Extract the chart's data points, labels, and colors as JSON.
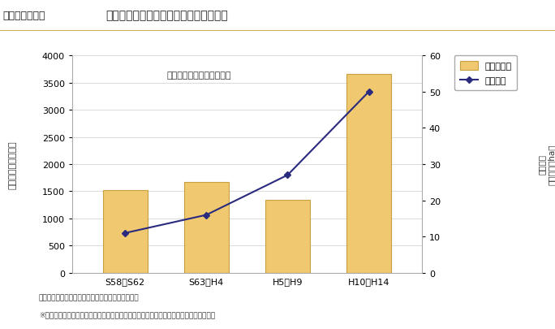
{
  "categories": [
    "S58～S62",
    "S63～H4",
    "H5～H9",
    "H10～H14"
  ],
  "bar_values": [
    1520,
    1670,
    1340,
    3650
  ],
  "line_values": [
    11,
    16,
    27,
    50
  ],
  "bar_color": "#F0C870",
  "bar_edge_color": "#C8A040",
  "line_color": "#2a2a7e",
  "marker_style": "D",
  "marker_size": 4,
  "left_ylabel_lines": [
    "水",
    "害",
    "被",
    "害",
    "額",
    "（",
    "億",
    "円",
    "）"
  ],
  "right_ylabel_lines": [
    "水",
    "害",
    "密",
    "度",
    "（百万円／",
    "ha）"
  ],
  "left_ylim": [
    0,
    4000
  ],
  "right_ylim": [
    0,
    60
  ],
  "left_yticks": [
    0,
    500,
    1000,
    1500,
    2000,
    2500,
    3000,
    3500,
    4000
  ],
  "right_yticks": [
    0,
    10,
    20,
    30,
    40,
    50,
    60
  ],
  "annotation": "（年平均・平成７年価格）",
  "title_label": "図２－４－３５",
  "title_text": "一般資産水害被害額及び水害密度の推移",
  "legend_bar_label": "水害被害額",
  "legend_line_label": "水害密度",
  "footer1": "（国土交通省河川局「水害統計」より内阁府作成）",
  "footer2": "※水害密度：水害面積（水害による「宅地その他」の浸水面積）当たりの一般資産被害額",
  "bg_color": "#ffffff",
  "title_bg_color": "#f5f0d0",
  "title_border_color": "#c8a830",
  "grid_color": "#cccccc",
  "spine_color": "#aaaaaa"
}
